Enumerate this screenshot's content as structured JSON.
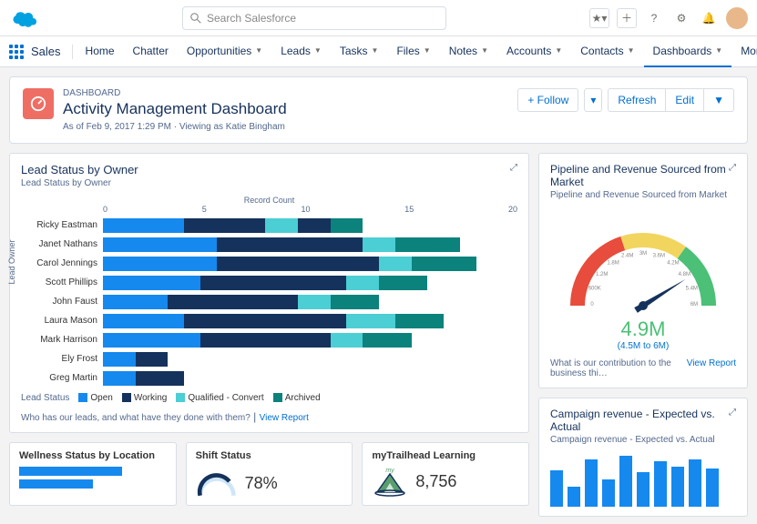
{
  "search": {
    "placeholder": "Search Salesforce"
  },
  "app": {
    "name": "Sales"
  },
  "nav": {
    "items": [
      "Home",
      "Chatter",
      "Opportunities",
      "Leads",
      "Tasks",
      "Files",
      "Notes",
      "Accounts",
      "Contacts",
      "Dashboards",
      "More"
    ],
    "active": "Dashboards",
    "withChevron": [
      "Opportunities",
      "Leads",
      "Tasks",
      "Files",
      "Notes",
      "Accounts",
      "Contacts",
      "Dashboards",
      "More"
    ]
  },
  "header": {
    "label": "DASHBOARD",
    "title": "Activity Management Dashboard",
    "meta": "As of Feb 9, 2017 1:29 PM · Viewing as Katie Bingham",
    "actions": {
      "follow": "+ Follow",
      "refresh": "Refresh",
      "edit": "Edit"
    }
  },
  "leadStatus": {
    "title": "Lead Status by Owner",
    "subtitle": "Lead Status by Owner",
    "axisTitle": "Record Count",
    "yAxisLabel": "Lead Owner",
    "ticks": [
      "0",
      "5",
      "10",
      "15",
      "20"
    ],
    "max": 23,
    "colors": {
      "open": "#1589ee",
      "working": "#14325c",
      "qualified": "#4bced4",
      "archived": "#0b827c"
    },
    "legendLabel": "Lead Status",
    "legend": [
      {
        "key": "open",
        "label": "Open"
      },
      {
        "key": "working",
        "label": "Working"
      },
      {
        "key": "qualified",
        "label": "Qualified - Convert"
      },
      {
        "key": "archived",
        "label": "Archived"
      }
    ],
    "rows": [
      {
        "name": "Ricky Eastman",
        "segs": [
          {
            "c": "open",
            "v": 5
          },
          {
            "c": "working",
            "v": 5
          },
          {
            "c": "qualified",
            "v": 2
          },
          {
            "c": "working",
            "v": 2
          },
          {
            "c": "archived",
            "v": 2
          }
        ]
      },
      {
        "name": "Janet Nathans",
        "segs": [
          {
            "c": "open",
            "v": 7
          },
          {
            "c": "working",
            "v": 9
          },
          {
            "c": "qualified",
            "v": 2
          },
          {
            "c": "archived",
            "v": 4
          }
        ]
      },
      {
        "name": "Carol Jennings",
        "segs": [
          {
            "c": "open",
            "v": 7
          },
          {
            "c": "working",
            "v": 10
          },
          {
            "c": "qualified",
            "v": 2
          },
          {
            "c": "archived",
            "v": 4
          }
        ]
      },
      {
        "name": "Scott Phillips",
        "segs": [
          {
            "c": "open",
            "v": 6
          },
          {
            "c": "working",
            "v": 9
          },
          {
            "c": "qualified",
            "v": 2
          },
          {
            "c": "archived",
            "v": 3
          }
        ]
      },
      {
        "name": "John Faust",
        "segs": [
          {
            "c": "open",
            "v": 4
          },
          {
            "c": "working",
            "v": 8
          },
          {
            "c": "qualified",
            "v": 2
          },
          {
            "c": "archived",
            "v": 3
          }
        ]
      },
      {
        "name": "Laura Mason",
        "segs": [
          {
            "c": "open",
            "v": 5
          },
          {
            "c": "working",
            "v": 10
          },
          {
            "c": "qualified",
            "v": 3
          },
          {
            "c": "archived",
            "v": 3
          }
        ]
      },
      {
        "name": "Mark Harrison",
        "segs": [
          {
            "c": "open",
            "v": 6
          },
          {
            "c": "working",
            "v": 8
          },
          {
            "c": "qualified",
            "v": 2
          },
          {
            "c": "archived",
            "v": 3
          }
        ]
      },
      {
        "name": "Ely Frost",
        "segs": [
          {
            "c": "open",
            "v": 2
          },
          {
            "c": "working",
            "v": 2
          }
        ]
      },
      {
        "name": "Greg Martin",
        "segs": [
          {
            "c": "open",
            "v": 2
          },
          {
            "c": "working",
            "v": 3
          }
        ]
      }
    ],
    "footerText": "Who has our leads, and what have they done with them?",
    "viewReport": "View Report"
  },
  "pipeline": {
    "title": "Pipeline and Revenue Sourced from Market",
    "subtitle": "Pipeline and Revenue Sourced from Market",
    "value": "4.9M",
    "range": "(4.5M to 6M)",
    "ticks": [
      "0",
      "600K",
      "1.2M",
      "1.8M",
      "2.4M",
      "3M",
      "3.6M",
      "4.2M",
      "4.8M",
      "5.4M",
      "6M"
    ],
    "segments": [
      {
        "color": "#e74c3c",
        "start": -90,
        "end": -18
      },
      {
        "color": "#f1d55f",
        "start": -18,
        "end": 36
      },
      {
        "color": "#4bc076",
        "start": 36,
        "end": 90
      }
    ],
    "needleAngle": 58,
    "footerText": "What is our contribution to the business thi…",
    "viewReport": "View Report"
  },
  "campaign": {
    "title": "Campaign revenue - Expected vs. Actual",
    "subtitle": "Campaign revenue - Expected vs. Actual",
    "barColor": "#1589ee",
    "bars": [
      40,
      22,
      52,
      30,
      56,
      38,
      50,
      44,
      52,
      42
    ]
  },
  "wellness": {
    "title": "Wellness Status by Location"
  },
  "shift": {
    "title": "Shift Status",
    "value": "78%",
    "arcColor": "#14325c",
    "arcBg": "#cfe6f8"
  },
  "trailhead": {
    "title": "myTrailhead Learning",
    "value": "8,756",
    "badge": "my"
  }
}
